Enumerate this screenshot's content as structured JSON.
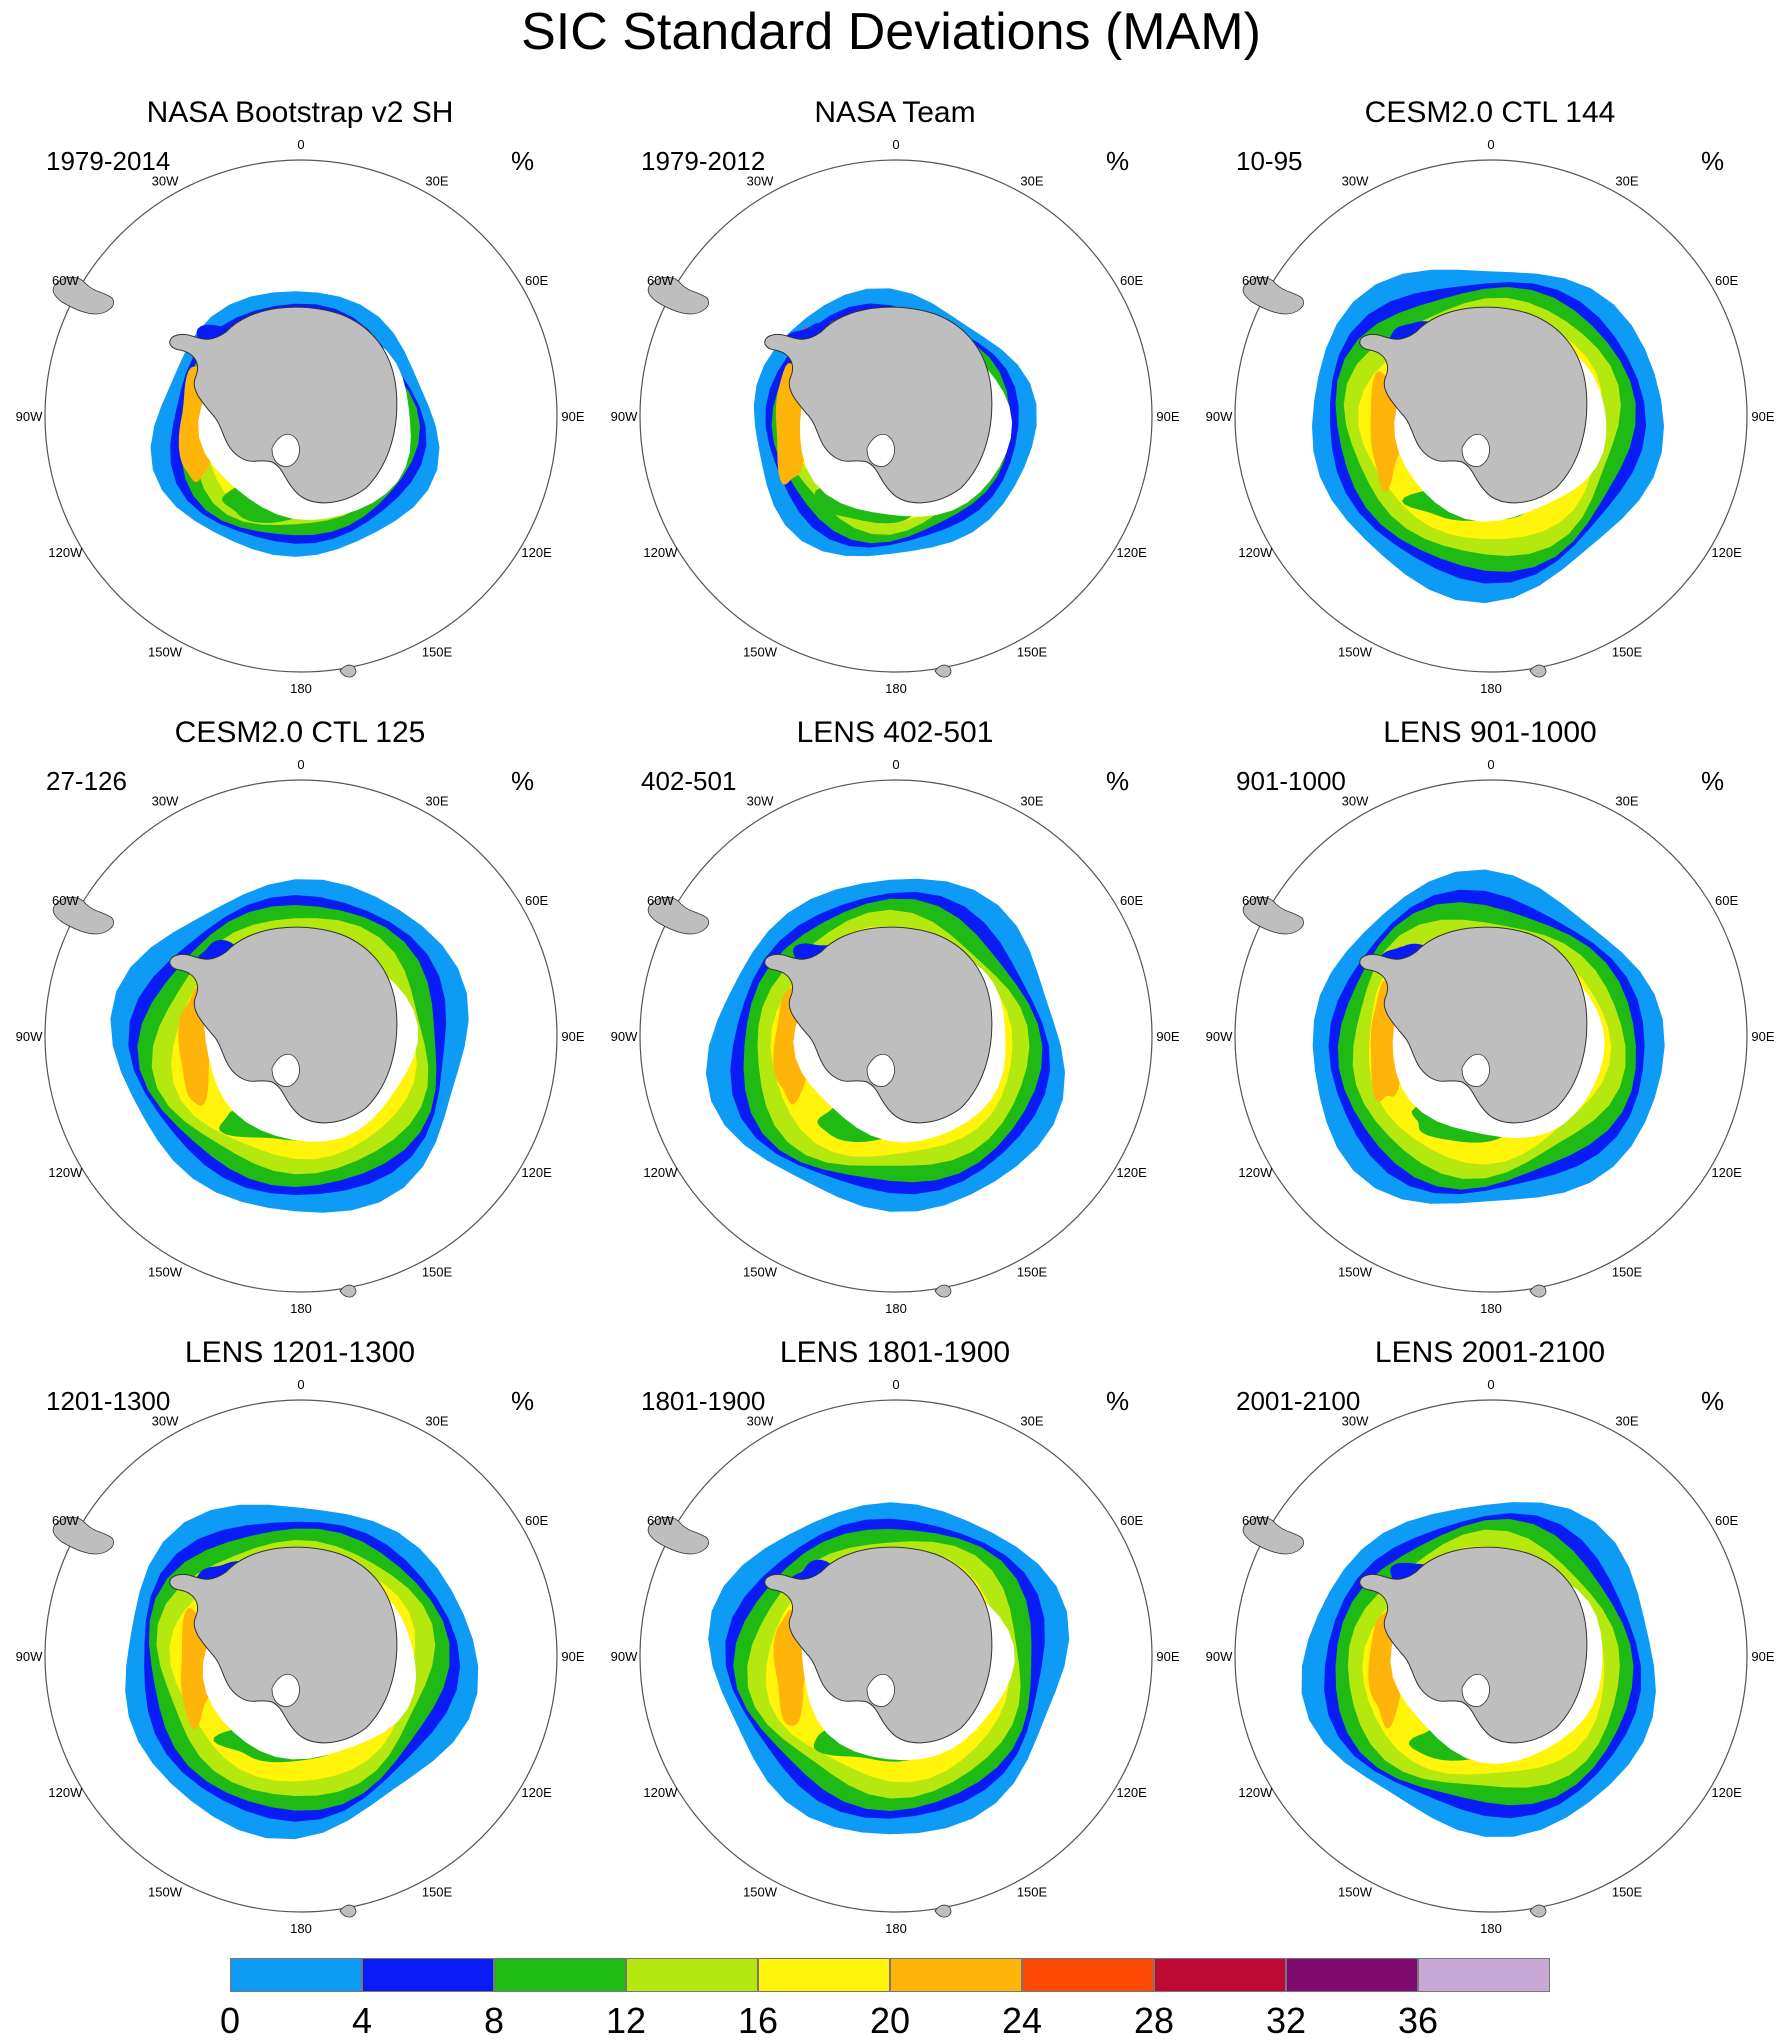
{
  "title": "SIC Standard Deviations (MAM)",
  "unit": "%",
  "lon_labels": [
    "0",
    "30E",
    "60E",
    "90E",
    "120E",
    "150E",
    "180",
    "150W",
    "120W",
    "90W",
    "60W",
    "30W"
  ],
  "colors": {
    "land": "#bebebe",
    "coastline": "#333333",
    "map_border": "#555555"
  },
  "panels": [
    {
      "title": "NASA Bootstrap v2 SH",
      "period": "1979-2014"
    },
    {
      "title": "NASA Team",
      "period": "1979-2012"
    },
    {
      "title": "CESM2.0 CTL 144",
      "period": "10-95"
    },
    {
      "title": "CESM2.0 CTL 125",
      "period": "27-126"
    },
    {
      "title": "LENS 402-501",
      "period": "402-501"
    },
    {
      "title": "LENS 901-1000",
      "period": "901-1000"
    },
    {
      "title": "LENS 1201-1300",
      "period": "1201-1300"
    },
    {
      "title": "LENS 1801-1900",
      "period": "1801-1900"
    },
    {
      "title": "LENS 2001-2100",
      "period": "2001-2100"
    }
  ],
  "colorbar": {
    "levels": [
      "0",
      "4",
      "8",
      "12",
      "16",
      "20",
      "24",
      "28",
      "32",
      "36"
    ],
    "colors": [
      "#0d9bf5",
      "#0a1cf5",
      "#1fba14",
      "#b5e80f",
      "#fff40a",
      "#ffb40a",
      "#ff4a05",
      "#bd0a35",
      "#7d0a6c",
      "#c9a8d6"
    ]
  }
}
